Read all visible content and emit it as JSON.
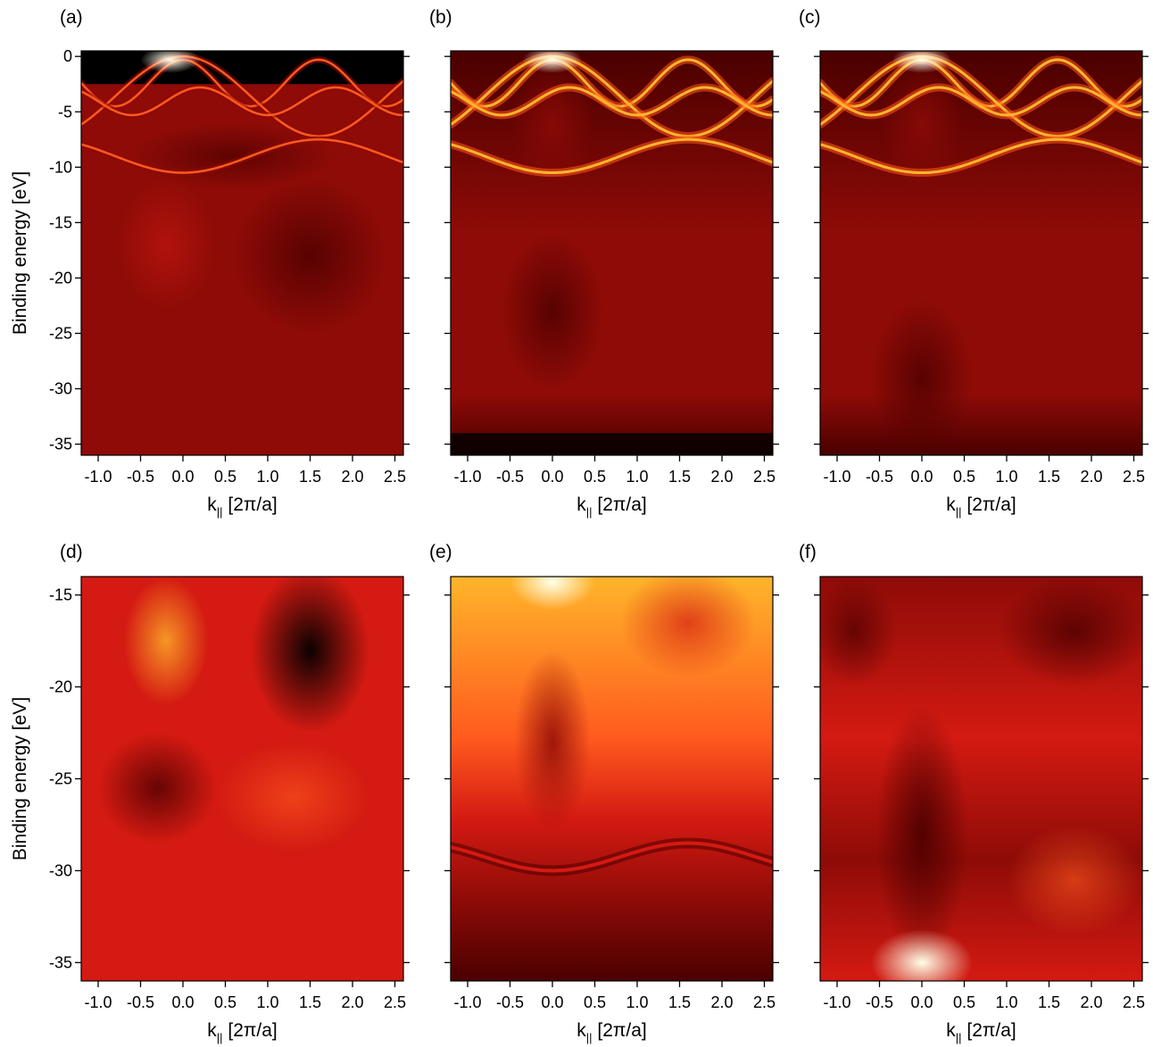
{
  "chart_data": [
    {
      "panel": "(a)",
      "type": "heatmap",
      "xlabel_main": "k",
      "xlabel_sub": "||",
      "xlabel_rest": " [2π/a]",
      "ylabel": "Binding energy [eV]",
      "xlim": [
        -1.2,
        2.6
      ],
      "ylim": [
        -36,
        0.5
      ],
      "xticks": [
        -1.0,
        -0.5,
        0.0,
        0.5,
        1.0,
        1.5,
        2.0,
        2.5
      ],
      "xtick_labels": [
        "-1.0",
        "-0.5",
        "0.0",
        "0.5",
        "1.0",
        "1.5",
        "2.0",
        "2.5"
      ],
      "yticks": [
        0,
        -5,
        -10,
        -15,
        -20,
        -25,
        -30,
        -35
      ],
      "ytick_labels": [
        "0",
        "-5",
        "-10",
        "-15",
        "-20",
        "-25",
        "-30",
        "-35"
      ],
      "colormap": [
        "#000000",
        "#4a0000",
        "#8e0b07",
        "#d41a12",
        "#ff5a1e",
        "#ffb52a",
        "#ffee60",
        "#ffffe8"
      ],
      "description_values": {
        "valence_band_maximum": {
          "k": -0.1,
          "E": -0.3
        },
        "dark_region": {
          "k": 1.5,
          "E": -18
        }
      }
    },
    {
      "panel": "(b)",
      "type": "heatmap",
      "xlabel_main": "k",
      "xlabel_sub": "||",
      "xlabel_rest": " [2π/a]",
      "xlim": [
        -1.2,
        2.6
      ],
      "ylim": [
        -36,
        0.5
      ],
      "xticks": [
        -1.0,
        -0.5,
        0.0,
        0.5,
        1.0,
        1.5,
        2.0,
        2.5
      ],
      "xtick_labels": [
        "-1.0",
        "-0.5",
        "0.0",
        "0.5",
        "1.0",
        "1.5",
        "2.0",
        "2.5"
      ],
      "yticks": [
        0,
        -5,
        -10,
        -15,
        -20,
        -25,
        -30,
        -35
      ],
      "colormap": [
        "#000000",
        "#4a0000",
        "#8e0b07",
        "#d41a12",
        "#ff5a1e",
        "#ffb52a",
        "#ffee60",
        "#ffffe8"
      ]
    },
    {
      "panel": "(c)",
      "type": "heatmap",
      "xlabel_main": "k",
      "xlabel_sub": "||",
      "xlabel_rest": " [2π/a]",
      "xlim": [
        -1.2,
        2.6
      ],
      "ylim": [
        -36,
        0.5
      ],
      "xticks": [
        -1.0,
        -0.5,
        0.0,
        0.5,
        1.0,
        1.5,
        2.0,
        2.5
      ],
      "xtick_labels": [
        "-1.0",
        "-0.5",
        "0.0",
        "0.5",
        "1.0",
        "1.5",
        "2.0",
        "2.5"
      ],
      "yticks": [
        0,
        -5,
        -10,
        -15,
        -20,
        -25,
        -30,
        -35
      ],
      "colormap": [
        "#000000",
        "#4a0000",
        "#8e0b07",
        "#d41a12",
        "#ff5a1e",
        "#ffb52a",
        "#ffee60",
        "#ffffe8"
      ]
    },
    {
      "panel": "(d)",
      "type": "heatmap",
      "xlabel_main": "k",
      "xlabel_sub": "||",
      "xlabel_rest": " [2π/a]",
      "ylabel": "Binding energy [eV]",
      "xlim": [
        -1.2,
        2.6
      ],
      "ylim": [
        -36,
        -14
      ],
      "xticks": [
        -1.0,
        -0.5,
        0.0,
        0.5,
        1.0,
        1.5,
        2.0,
        2.5
      ],
      "xtick_labels": [
        "-1.0",
        "-0.5",
        "0.0",
        "0.5",
        "1.0",
        "1.5",
        "2.0",
        "2.5"
      ],
      "yticks": [
        -15,
        -20,
        -25,
        -30,
        -35
      ],
      "ytick_labels": [
        "-15",
        "-20",
        "-25",
        "-30",
        "-35"
      ],
      "colormap": [
        "#000000",
        "#4a0000",
        "#8e0b07",
        "#d41a12",
        "#ff5a1e",
        "#ffb52a",
        "#ffee60",
        "#ffffe8"
      ]
    },
    {
      "panel": "(e)",
      "type": "heatmap",
      "xlabel_main": "k",
      "xlabel_sub": "||",
      "xlabel_rest": " [2π/a]",
      "xlim": [
        -1.2,
        2.6
      ],
      "ylim": [
        -36,
        -14
      ],
      "xticks": [
        -1.0,
        -0.5,
        0.0,
        0.5,
        1.0,
        1.5,
        2.0,
        2.5
      ],
      "xtick_labels": [
        "-1.0",
        "-0.5",
        "0.0",
        "0.5",
        "1.0",
        "1.5",
        "2.0",
        "2.5"
      ],
      "yticks": [
        -15,
        -20,
        -25,
        -30,
        -35
      ],
      "colormap": [
        "#000000",
        "#4a0000",
        "#8e0b07",
        "#d41a12",
        "#ff5a1e",
        "#ffb52a",
        "#ffee60",
        "#ffffe8"
      ]
    },
    {
      "panel": "(f)",
      "type": "heatmap",
      "xlabel_main": "k",
      "xlabel_sub": "||",
      "xlabel_rest": " [2π/a]",
      "xlim": [
        -1.2,
        2.6
      ],
      "ylim": [
        -36,
        -14
      ],
      "xticks": [
        -1.0,
        -0.5,
        0.0,
        0.5,
        1.0,
        1.5,
        2.0,
        2.5
      ],
      "xtick_labels": [
        "-1.0",
        "-0.5",
        "0.0",
        "0.5",
        "1.0",
        "1.5",
        "2.0",
        "2.5"
      ],
      "yticks": [
        -15,
        -20,
        -25,
        -30,
        -35
      ],
      "colormap": [
        "#000000",
        "#4a0000",
        "#8e0b07",
        "#d41a12",
        "#ff5a1e",
        "#ffb52a",
        "#ffee60",
        "#ffffe8"
      ]
    }
  ]
}
